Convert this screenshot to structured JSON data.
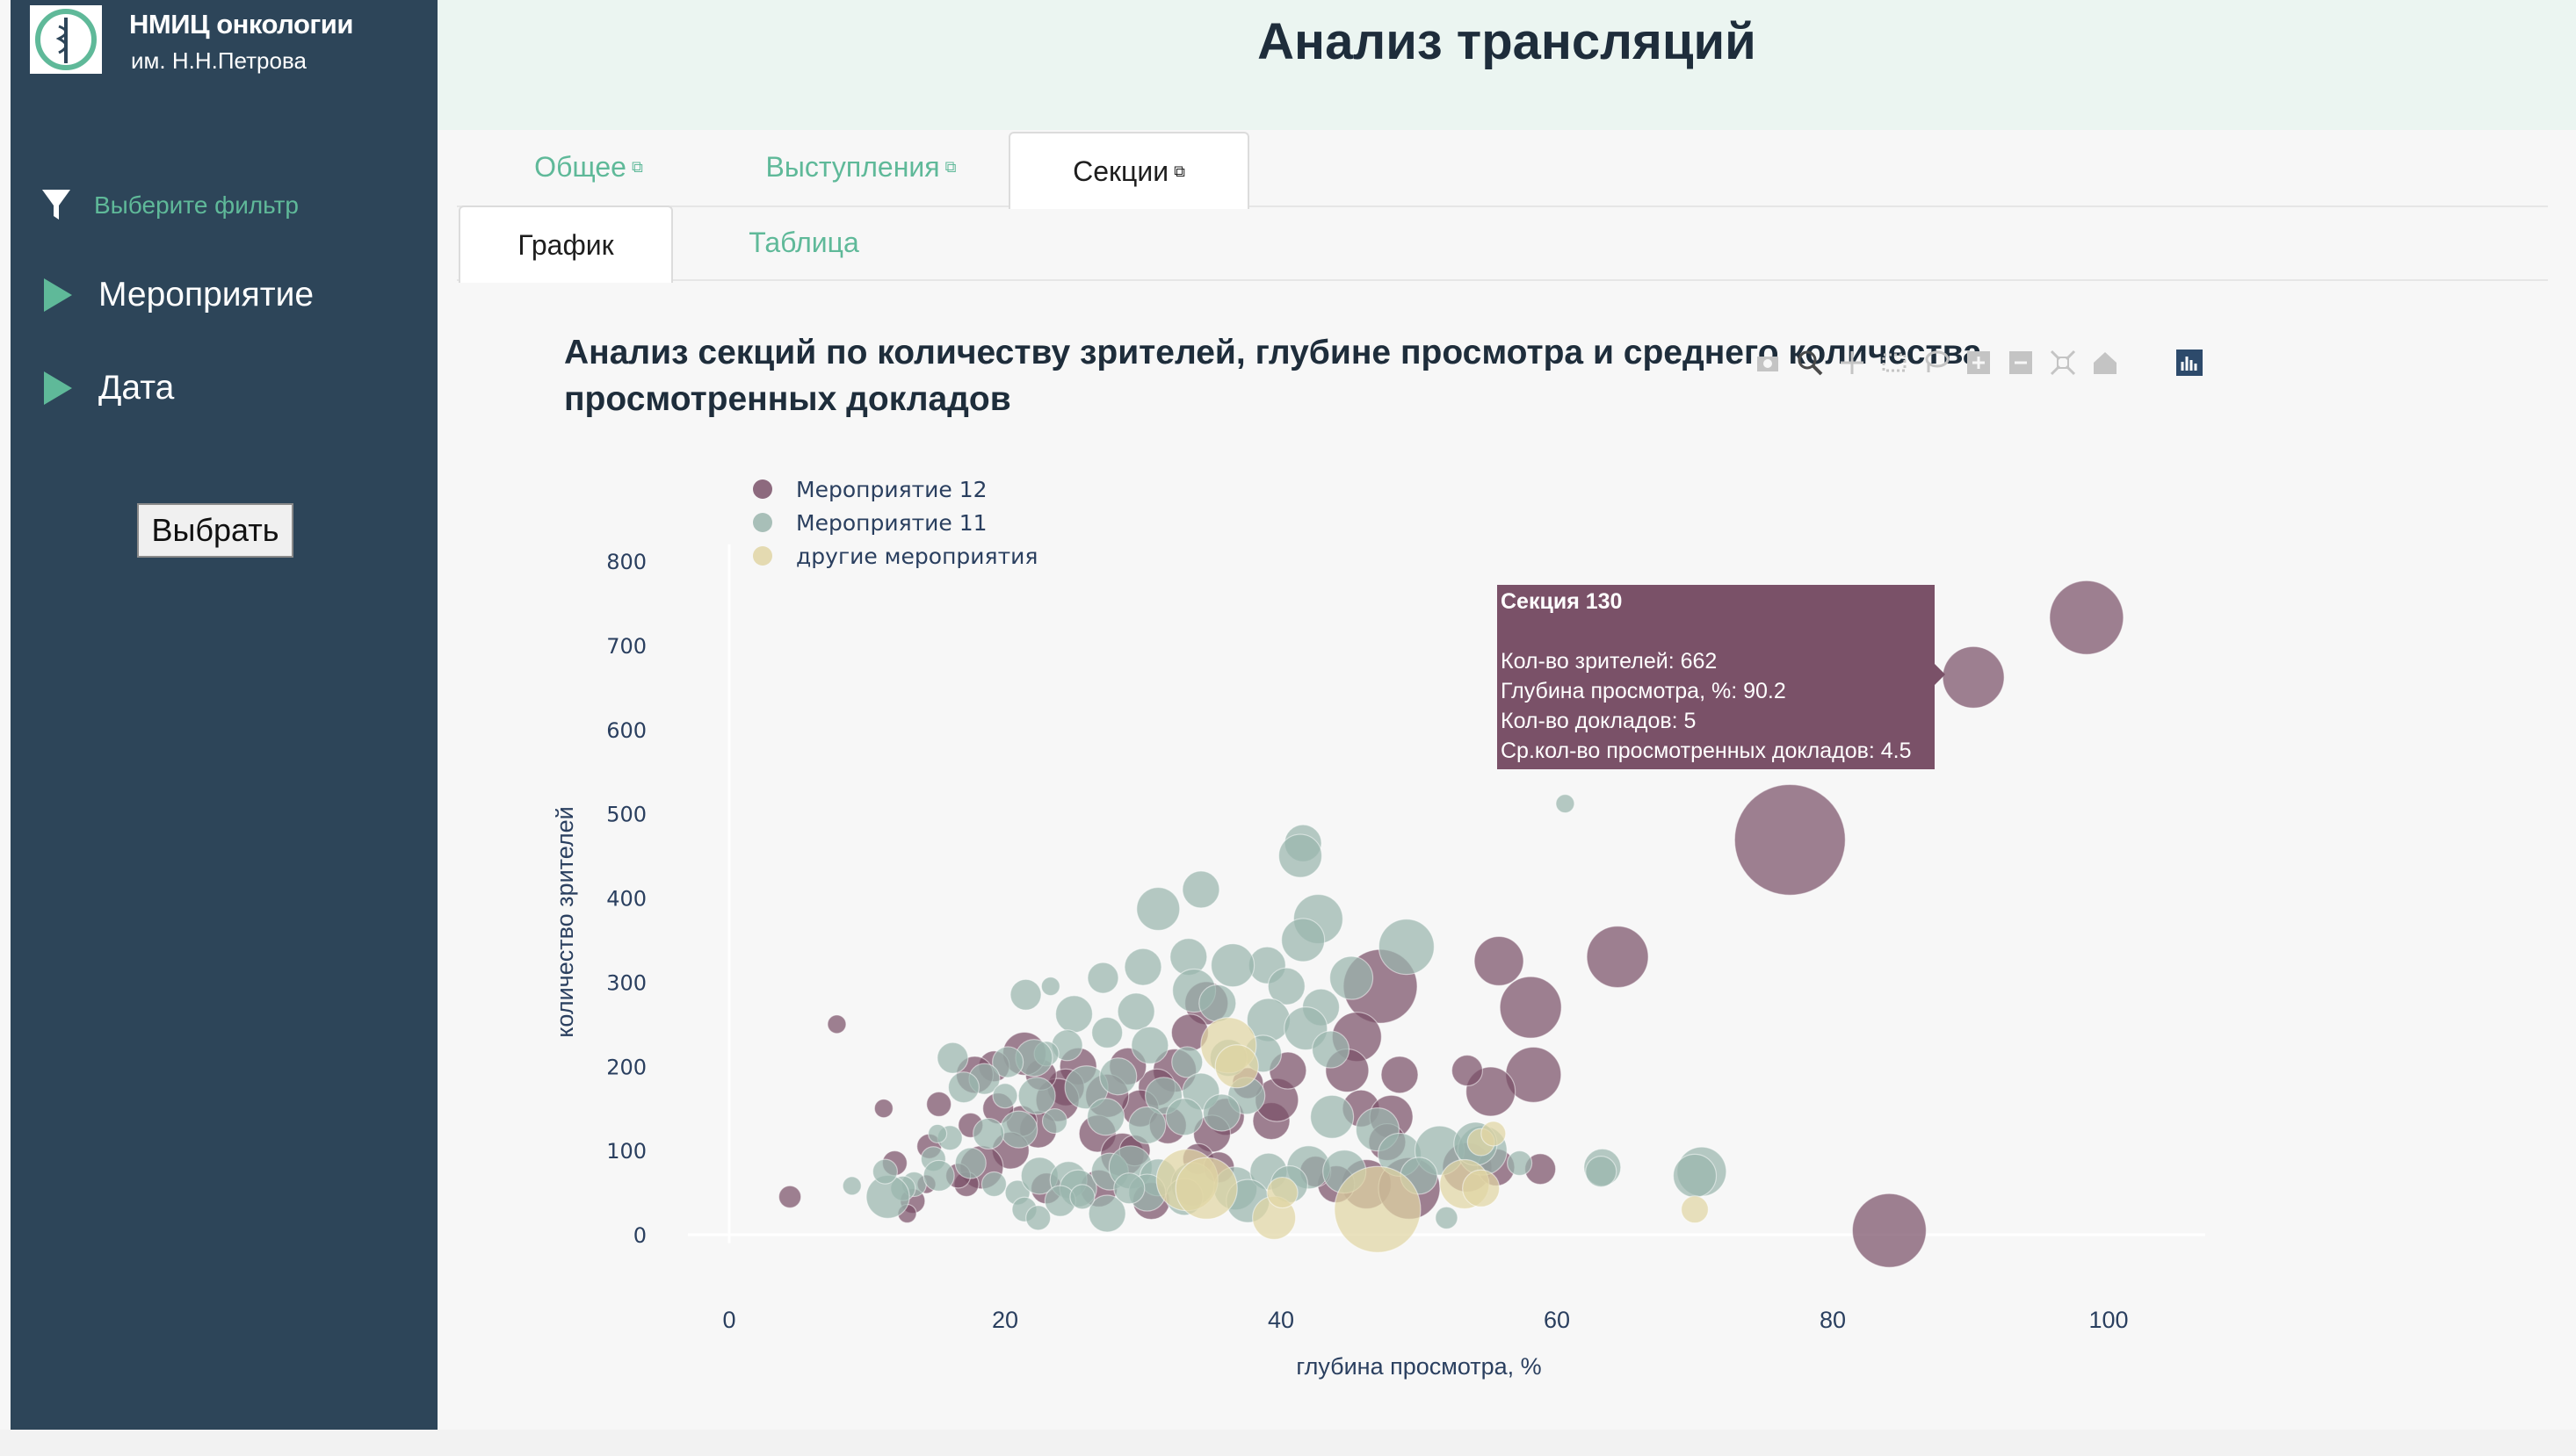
{
  "header": {
    "title": "Анализ трансляций"
  },
  "brand": {
    "name": "НМИЦ онкологии",
    "subtitle": "им. Н.Н.Петрова",
    "accent": "#5fb999",
    "sidebar_bg": "#2d4559"
  },
  "sidebar": {
    "filter_label": "Выберите фильтр",
    "items": [
      {
        "label": "Мероприятие"
      },
      {
        "label": "Дата"
      }
    ],
    "select_button": "Выбрать"
  },
  "tabs": [
    {
      "label": "Общее",
      "active": false
    },
    {
      "label": "Выступления",
      "active": false
    },
    {
      "label": "Секции",
      "active": true
    }
  ],
  "subtabs": [
    {
      "label": "График",
      "active": true
    },
    {
      "label": "Таблица",
      "active": false
    }
  ],
  "modebar": {
    "icons": [
      "camera-icon",
      "zoom-icon",
      "pan-icon",
      "box-select-icon",
      "lasso-select-icon",
      "zoom-in-icon",
      "zoom-out-icon",
      "autoscale-icon",
      "reset-axes-icon",
      "plotly-logo-icon"
    ]
  },
  "tooltip": {
    "title": "Секция 130",
    "lines": [
      "Кол-во зрителей: 662",
      "Глубина просмотра, %: 90.2",
      "Кол-во докладов: 5",
      "Ср.кол-во просмотренных докладов: 4.5"
    ]
  },
  "chart_data": {
    "type": "scatter",
    "title": "Анализ секций по количеству зрителей, глубине просмотра и среднего количества просмотренных докладов",
    "xlabel": "глубина просмотра, %",
    "ylabel": "количество зрителей",
    "xlim": [
      -3,
      107
    ],
    "ylim": [
      -20,
      800
    ],
    "xticks": [
      0,
      20,
      40,
      60,
      80,
      100
    ],
    "yticks": [
      0,
      100,
      200,
      300,
      400,
      500,
      600,
      700,
      800
    ],
    "grid": false,
    "legend": "top-left",
    "series": [
      {
        "name": "Мероприятие 12",
        "color": "#7a5168",
        "points": [
          [
            98.4,
            733,
            6
          ],
          [
            90.2,
            662,
            5
          ],
          [
            76.9,
            469,
            9
          ],
          [
            84.1,
            5,
            6
          ],
          [
            64.4,
            330,
            5
          ],
          [
            55.8,
            325,
            4
          ],
          [
            58.1,
            270,
            5
          ],
          [
            47.2,
            295,
            6
          ],
          [
            58.3,
            190,
            4.5
          ],
          [
            55.2,
            170,
            4
          ],
          [
            53.5,
            195,
            2.5
          ],
          [
            45.5,
            235,
            4
          ],
          [
            44.8,
            195,
            3.5
          ],
          [
            48.6,
            190,
            3
          ],
          [
            45.8,
            150,
            3
          ],
          [
            48.0,
            140,
            3.5
          ],
          [
            47.7,
            110,
            3
          ],
          [
            46.2,
            60,
            4
          ],
          [
            49.3,
            55,
            5
          ],
          [
            53.5,
            80,
            4
          ],
          [
            55.6,
            80,
            3
          ],
          [
            58.8,
            78,
            2.5
          ],
          [
            44.0,
            60,
            3
          ],
          [
            42.5,
            75,
            2.5
          ],
          [
            39.3,
            135,
            3
          ],
          [
            39.7,
            160,
            3.5
          ],
          [
            40.5,
            195,
            3
          ],
          [
            37.6,
            180,
            2.5
          ],
          [
            36.0,
            140,
            3
          ],
          [
            35.0,
            120,
            3
          ],
          [
            34.0,
            90,
            2.5
          ],
          [
            35.5,
            80,
            2.5
          ],
          [
            34.6,
            275,
            3.5
          ],
          [
            33.4,
            240,
            3
          ],
          [
            32.3,
            195,
            3.5
          ],
          [
            31.0,
            175,
            3
          ],
          [
            29.8,
            150,
            3
          ],
          [
            28.9,
            200,
            3
          ],
          [
            27.4,
            165,
            3.5
          ],
          [
            26.7,
            120,
            3
          ],
          [
            28.5,
            95,
            3.5
          ],
          [
            29.4,
            100,
            2.5
          ],
          [
            25.3,
            200,
            3
          ],
          [
            24.4,
            175,
            3
          ],
          [
            23.8,
            160,
            3.5
          ],
          [
            22.6,
            190,
            2.5
          ],
          [
            21.4,
            215,
            3.5
          ],
          [
            22.4,
            125,
            3
          ],
          [
            21.2,
            135,
            2.5
          ],
          [
            20.4,
            100,
            3
          ],
          [
            19.5,
            150,
            2.5
          ],
          [
            19.2,
            200,
            2.5
          ],
          [
            17.8,
            190,
            3
          ],
          [
            17.5,
            130,
            2
          ],
          [
            18.3,
            80,
            3.5
          ],
          [
            17.2,
            60,
            2
          ],
          [
            16.6,
            70,
            2
          ],
          [
            15.2,
            155,
            2
          ],
          [
            14.5,
            105,
            2
          ],
          [
            12.0,
            85,
            2
          ],
          [
            11.2,
            150,
            1.5
          ],
          [
            13.3,
            40,
            2
          ],
          [
            14.3,
            60,
            1.5
          ],
          [
            12.9,
            25,
            1.5
          ],
          [
            7.8,
            250,
            1.5
          ],
          [
            4.4,
            45,
            1.8
          ],
          [
            26.8,
            55,
            3
          ],
          [
            30.6,
            40,
            3
          ],
          [
            23.0,
            55,
            2.5
          ],
          [
            31.8,
            130,
            3
          ]
        ]
      },
      {
        "name": "Мероприятие 11",
        "color": "#9ab5ad",
        "points": [
          [
            60.6,
            512,
            1.5
          ],
          [
            41.6,
            465,
            3
          ],
          [
            41.4,
            450,
            3.5
          ],
          [
            34.2,
            410,
            3
          ],
          [
            31.1,
            387,
            3.5
          ],
          [
            42.7,
            375,
            4
          ],
          [
            49.1,
            342,
            4.5
          ],
          [
            41.6,
            350,
            3.5
          ],
          [
            45.1,
            305,
            3.5
          ],
          [
            39.0,
            320,
            3
          ],
          [
            36.5,
            320,
            3.5
          ],
          [
            33.3,
            330,
            3
          ],
          [
            30.0,
            318,
            3
          ],
          [
            27.1,
            305,
            2.5
          ],
          [
            21.5,
            285,
            2.5
          ],
          [
            23.3,
            295,
            1.5
          ],
          [
            25.0,
            262,
            3
          ],
          [
            29.5,
            265,
            3
          ],
          [
            33.7,
            290,
            3.5
          ],
          [
            35.4,
            275,
            3
          ],
          [
            40.4,
            295,
            3
          ],
          [
            42.9,
            270,
            3
          ],
          [
            39.1,
            255,
            3.5
          ],
          [
            41.8,
            245,
            3.5
          ],
          [
            43.6,
            220,
            3
          ],
          [
            38.7,
            215,
            3
          ],
          [
            36.2,
            210,
            3
          ],
          [
            33.2,
            205,
            2.5
          ],
          [
            30.5,
            225,
            3
          ],
          [
            27.4,
            240,
            2.5
          ],
          [
            24.5,
            225,
            2.5
          ],
          [
            23.0,
            215,
            2
          ],
          [
            22.1,
            210,
            3
          ],
          [
            20.2,
            205,
            2.5
          ],
          [
            18.5,
            185,
            2.5
          ],
          [
            17.0,
            175,
            2.5
          ],
          [
            16.2,
            210,
            2.5
          ],
          [
            20.0,
            165,
            2
          ],
          [
            22.3,
            165,
            3
          ],
          [
            25.9,
            175,
            3.5
          ],
          [
            28.2,
            188,
            3
          ],
          [
            31.5,
            165,
            3
          ],
          [
            34.2,
            170,
            3
          ],
          [
            37.5,
            165,
            3
          ],
          [
            35.7,
            145,
            3
          ],
          [
            33.0,
            140,
            3
          ],
          [
            30.3,
            130,
            3
          ],
          [
            27.3,
            140,
            3
          ],
          [
            23.6,
            135,
            2
          ],
          [
            21.0,
            125,
            3
          ],
          [
            18.8,
            120,
            2.5
          ],
          [
            16.0,
            115,
            2
          ],
          [
            15.1,
            120,
            1.5
          ],
          [
            14.8,
            90,
            2
          ],
          [
            13.4,
            60,
            2
          ],
          [
            12.6,
            55,
            2
          ],
          [
            11.5,
            45,
            3.5
          ],
          [
            11.3,
            75,
            2
          ],
          [
            8.9,
            58,
            1.5
          ],
          [
            15.2,
            70,
            2.5
          ],
          [
            17.5,
            85,
            2.5
          ],
          [
            19.2,
            60,
            2
          ],
          [
            20.9,
            50,
            2
          ],
          [
            22.5,
            70,
            3
          ],
          [
            24.6,
            65,
            3
          ],
          [
            25.3,
            55,
            3
          ],
          [
            27.6,
            75,
            3
          ],
          [
            29.1,
            80,
            3.5
          ],
          [
            31.1,
            68,
            3
          ],
          [
            33.6,
            60,
            3.5
          ],
          [
            36.7,
            55,
            3.5
          ],
          [
            39.1,
            75,
            3
          ],
          [
            42.0,
            80,
            3.5
          ],
          [
            43.7,
            140,
            3.5
          ],
          [
            47.0,
            125,
            3.5
          ],
          [
            48.6,
            95,
            3.5
          ],
          [
            51.5,
            100,
            4
          ],
          [
            54.6,
            100,
            4
          ],
          [
            54.1,
            108,
            3.5
          ],
          [
            50.0,
            70,
            3
          ],
          [
            57.3,
            85,
            2
          ],
          [
            63.3,
            80,
            3
          ],
          [
            63.2,
            75,
            2.5
          ],
          [
            70.5,
            75,
            4
          ],
          [
            70.0,
            70,
            3.5
          ],
          [
            52.0,
            20,
            1.8
          ],
          [
            44.6,
            75,
            3.5
          ],
          [
            40.6,
            60,
            3
          ],
          [
            37.6,
            40,
            3.5
          ],
          [
            33.0,
            45,
            3
          ],
          [
            30.3,
            50,
            3
          ],
          [
            27.4,
            25,
            3
          ],
          [
            24.0,
            40,
            2.5
          ],
          [
            21.4,
            30,
            2
          ],
          [
            22.4,
            20,
            2
          ],
          [
            25.6,
            45,
            2
          ],
          [
            29.0,
            55,
            2.5
          ]
        ]
      },
      {
        "name": "другие мероприятия",
        "color": "#e0d5a4",
        "points": [
          [
            47.0,
            30,
            7
          ],
          [
            33.2,
            65,
            5
          ],
          [
            34.6,
            55,
            5
          ],
          [
            36.2,
            225,
            4.5
          ],
          [
            36.8,
            200,
            3.5
          ],
          [
            53.3,
            60,
            4
          ],
          [
            54.5,
            55,
            3
          ],
          [
            39.5,
            20,
            3.5
          ],
          [
            40.1,
            50,
            2.5
          ],
          [
            54.5,
            110,
            2.2
          ],
          [
            55.4,
            120,
            2
          ],
          [
            70.0,
            30,
            2.2
          ]
        ]
      }
    ]
  }
}
